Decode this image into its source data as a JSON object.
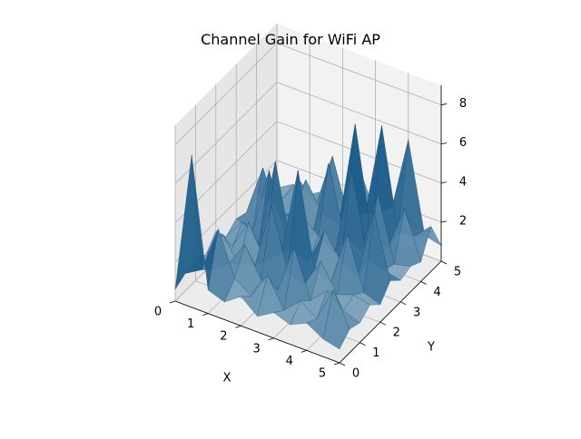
{
  "chart_data": {
    "type": "surface3d",
    "title": "Channel Gain for WiFi AP",
    "xlabel": "X",
    "ylabel": "Y",
    "zlabel": "",
    "xlim": [
      0,
      5
    ],
    "ylim": [
      0,
      5
    ],
    "zlim": [
      0,
      9
    ],
    "x_ticks": [
      "0",
      "1",
      "2",
      "3",
      "4",
      "5"
    ],
    "y_ticks": [
      "0",
      "1",
      "2",
      "3",
      "4",
      "5"
    ],
    "z_ticks": [
      "2",
      "4",
      "6",
      "8"
    ],
    "surface_color": "#1f5f8b",
    "grid": true,
    "x_grid": [
      0,
      0.5,
      1,
      1.5,
      2,
      2.5,
      3,
      3.5,
      4,
      4.5,
      5
    ],
    "y_grid": [
      0,
      0.5,
      1,
      1.5,
      2,
      2.5,
      3,
      3.5,
      4,
      4.5,
      5
    ],
    "z_values": [
      [
        0.6,
        0.9,
        1.2,
        0.8,
        1.5,
        0.7,
        1.1,
        0.9,
        1.3,
        0.8,
        0.6
      ],
      [
        7.8,
        1.4,
        0.9,
        2.2,
        1.0,
        1.8,
        0.8,
        3.5,
        1.2,
        0.9,
        1.1
      ],
      [
        1.2,
        3.8,
        1.5,
        1.0,
        2.6,
        0.9,
        4.2,
        1.3,
        0.8,
        2.1,
        0.9
      ],
      [
        0.9,
        1.6,
        2.8,
        1.2,
        0.9,
        5.5,
        1.1,
        1.9,
        3.0,
        1.2,
        1.4
      ],
      [
        1.5,
        1.0,
        1.3,
        4.6,
        1.7,
        1.2,
        2.5,
        0.9,
        1.6,
        4.0,
        1.0
      ],
      [
        0.8,
        2.4,
        1.1,
        1.5,
        6.2,
        1.0,
        1.8,
        5.0,
        1.3,
        1.1,
        3.2
      ],
      [
        1.3,
        0.9,
        3.6,
        1.2,
        1.4,
        2.9,
        1.2,
        1.5,
        6.8,
        1.7,
        1.2
      ],
      [
        1.0,
        1.7,
        1.2,
        2.7,
        1.1,
        1.6,
        5.8,
        1.2,
        1.4,
        6.5,
        1.8
      ],
      [
        1.4,
        1.1,
        2.0,
        1.3,
        3.9,
        1.2,
        1.5,
        4.4,
        1.1,
        1.3,
        5.6
      ],
      [
        0.9,
        2.9,
        1.3,
        1.6,
        1.2,
        4.8,
        1.3,
        1.1,
        3.4,
        1.5,
        1.0
      ],
      [
        0.7,
        1.2,
        1.0,
        1.4,
        0.9,
        1.6,
        1.1,
        1.3,
        1.0,
        2.3,
        0.8
      ]
    ]
  }
}
